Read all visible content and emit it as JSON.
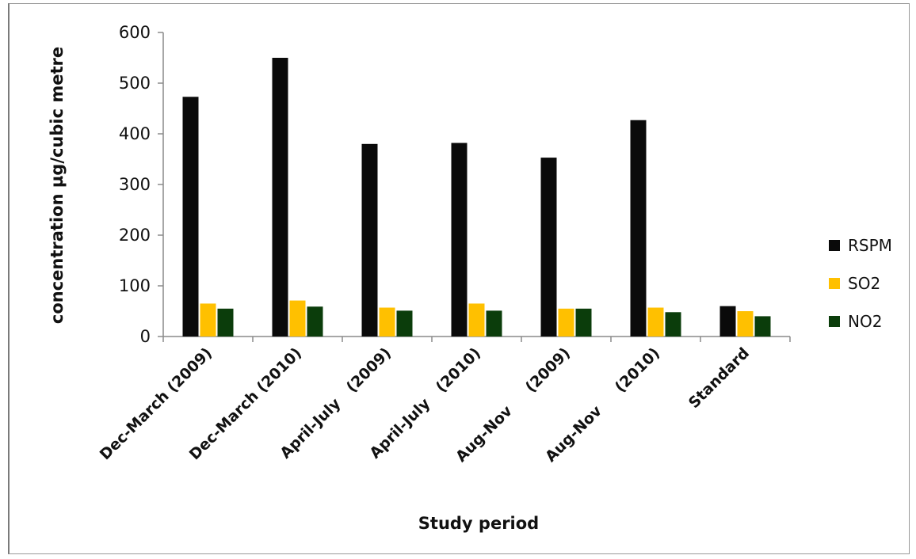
{
  "chart_data": {
    "type": "bar",
    "title": "",
    "xlabel": "Study period",
    "ylabel": "concentration µg/cubic metre",
    "ylim": [
      0,
      600
    ],
    "yticks": [
      0,
      100,
      200,
      300,
      400,
      500,
      600
    ],
    "categories": [
      "Dec-March (2009)",
      "Dec-March (2010)",
      "April-July   (2009)",
      "April-July   (2010)",
      "Aug-Nov     (2009)",
      "Aug-Nov     (2010)",
      "Standard"
    ],
    "series": [
      {
        "name": "RSPM",
        "color": "#0a0a0a",
        "values": [
          473,
          550,
          380,
          382,
          353,
          427,
          60
        ]
      },
      {
        "name": "SO2",
        "color": "#ffc000",
        "values": [
          65,
          71,
          57,
          65,
          55,
          57,
          50
        ]
      },
      {
        "name": "NO2",
        "color": "#0b3d0b",
        "values": [
          55,
          59,
          51,
          51,
          55,
          48,
          40
        ]
      }
    ],
    "grid": false,
    "legend": "right"
  }
}
